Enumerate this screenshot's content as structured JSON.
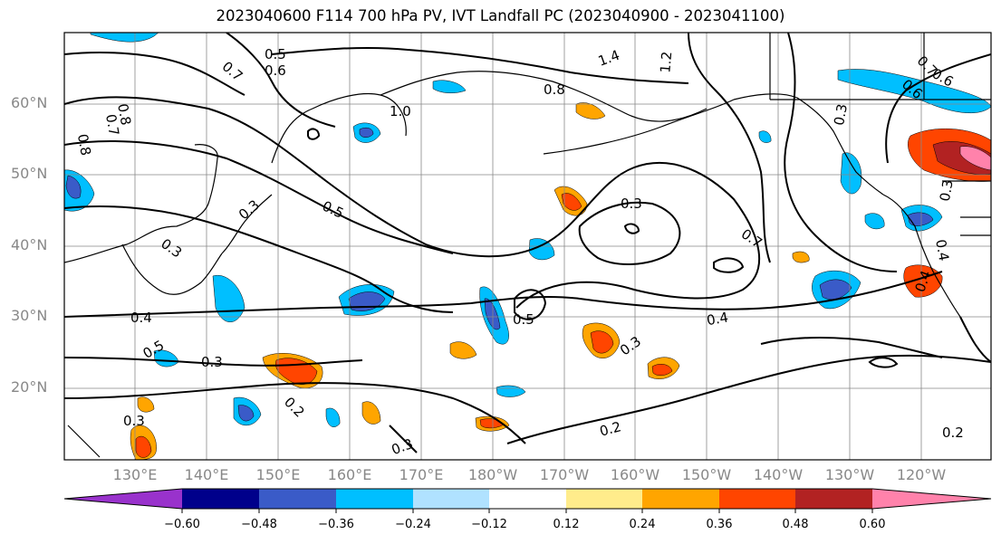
{
  "title": "2023040600 F114 700 hPa PV, IVT Landfall PC (2023040900 - 2023041100)",
  "lat_labels": [
    "60°N",
    "50°N",
    "40°N",
    "30°N",
    "20°N"
  ],
  "lon_labels": [
    "130°E",
    "140°E",
    "150°E",
    "160°E",
    "170°E",
    "180°W",
    "170°W",
    "160°W",
    "150°W",
    "140°W",
    "130°W",
    "120°W"
  ],
  "colorbar": {
    "colors": [
      "#9932cc",
      "#00008b",
      "#3a5bc8",
      "#00bfff",
      "#b0e2ff",
      "#ffffff",
      "#ffec8b",
      "#ffa500",
      "#ff4500",
      "#b22222",
      "#ff82ab"
    ],
    "tick_labels": [
      "−0.60",
      "−0.48",
      "−0.36",
      "−0.24",
      "−0.12",
      "0.12",
      "0.24",
      "0.36",
      "0.48",
      "0.60"
    ]
  },
  "contour_labels": [
    "0.5",
    "0.6",
    "0.7",
    "0.8",
    "1.0",
    "1.4",
    "1.2",
    "0.8",
    "0.6",
    "0.7",
    "0.8",
    "0.3",
    "0.3",
    "0.5",
    "0.3",
    "0.4",
    "0.5",
    "0.3",
    "0.2",
    "0.3",
    "0.3",
    "0.2",
    "0.5",
    "0.4",
    "0.3",
    "0.7",
    "0.3",
    "0.4",
    "0.7",
    "0.6",
    "0.2",
    "0.3",
    "0.4"
  ]
}
